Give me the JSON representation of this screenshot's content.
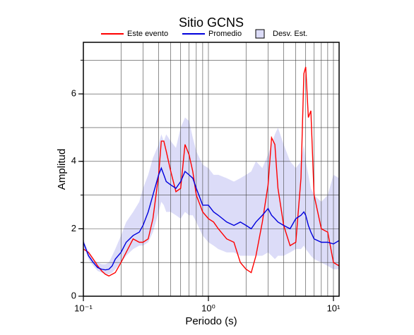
{
  "chart_data": {
    "type": "line",
    "title": "Sitio GCNS",
    "xlabel": "Periodo (s)",
    "ylabel": "Amplitud",
    "log_x": true,
    "grid": true,
    "legend": "top",
    "x": [
      0.1,
      0.11,
      0.12,
      0.13,
      0.14,
      0.15,
      0.16,
      0.17,
      0.18,
      0.2,
      0.22,
      0.25,
      0.28,
      0.3,
      0.33,
      0.36,
      0.4,
      0.42,
      0.44,
      0.46,
      0.5,
      0.55,
      0.6,
      0.65,
      0.7,
      0.75,
      0.8,
      0.9,
      1.0,
      1.1,
      1.2,
      1.4,
      1.6,
      1.8,
      2.0,
      2.2,
      2.4,
      2.7,
      3.0,
      3.2,
      3.4,
      3.6,
      4.0,
      4.5,
      5.0,
      5.5,
      5.8,
      6.0,
      6.3,
      6.6,
      7.0,
      8.0,
      9.0,
      10,
      11.1
    ],
    "series": [
      {
        "name": "Este evento",
        "color": "#ff0000",
        "values": [
          1.4,
          1.3,
          1.1,
          0.9,
          0.75,
          0.65,
          0.6,
          0.65,
          0.7,
          1.0,
          1.3,
          1.7,
          1.6,
          1.6,
          1.7,
          2.3,
          3.6,
          4.6,
          4.6,
          4.3,
          3.7,
          3.1,
          3.2,
          4.5,
          4.2,
          3.7,
          3.0,
          2.5,
          2.3,
          2.2,
          2.0,
          1.7,
          1.6,
          1.0,
          0.8,
          0.7,
          1.2,
          2.2,
          3.3,
          4.7,
          4.5,
          3.2,
          2.1,
          1.5,
          1.6,
          3.5,
          6.6,
          6.8,
          5.3,
          5.5,
          3.0,
          2.0,
          1.9,
          1.0,
          0.9
        ]
      },
      {
        "name": "Promedio",
        "color": "#0000dd",
        "values": [
          1.6,
          1.2,
          1.0,
          0.85,
          0.8,
          0.78,
          0.8,
          0.9,
          1.1,
          1.3,
          1.6,
          1.8,
          1.9,
          2.1,
          2.5,
          3.0,
          3.6,
          3.8,
          3.6,
          3.4,
          3.3,
          3.2,
          3.4,
          3.7,
          3.6,
          3.5,
          3.2,
          2.7,
          2.7,
          2.5,
          2.4,
          2.2,
          2.1,
          2.2,
          2.1,
          2.0,
          2.2,
          2.4,
          2.6,
          2.4,
          2.3,
          2.2,
          2.1,
          2.0,
          2.3,
          2.4,
          2.5,
          2.4,
          2.1,
          1.9,
          1.7,
          1.6,
          1.6,
          1.55,
          1.65
        ]
      }
    ],
    "band": {
      "name": "Desv. Est.",
      "color": "#dcdcf8",
      "lower": [
        1.5,
        1.1,
        0.9,
        0.75,
        0.7,
        0.65,
        0.65,
        0.7,
        0.8,
        1.0,
        1.2,
        1.4,
        1.5,
        1.5,
        1.6,
        1.9,
        2.5,
        2.8,
        2.7,
        2.5,
        2.5,
        2.4,
        2.3,
        2.5,
        2.4,
        2.4,
        2.2,
        1.8,
        1.6,
        1.5,
        1.4,
        1.3,
        1.3,
        1.2,
        1.2,
        1.2,
        1.2,
        1.2,
        1.3,
        1.2,
        1.1,
        1.2,
        1.2,
        1.3,
        1.4,
        1.4,
        1.5,
        1.4,
        1.3,
        1.2,
        1.1,
        1.0,
        0.9,
        0.8,
        0.8
      ],
      "upper": [
        1.7,
        1.3,
        1.1,
        1.0,
        0.95,
        0.95,
        1.0,
        1.2,
        1.4,
        1.8,
        2.2,
        2.5,
        2.8,
        3.2,
        3.6,
        4.1,
        4.5,
        4.8,
        4.6,
        4.8,
        4.6,
        4.4,
        5.0,
        5.3,
        5.2,
        4.7,
        4.3,
        3.9,
        3.8,
        3.6,
        3.6,
        3.5,
        3.4,
        3.5,
        3.6,
        3.7,
        4.0,
        3.8,
        4.2,
        4.5,
        4.8,
        5.0,
        4.5,
        4.0,
        3.8,
        4.0,
        4.5,
        4.0,
        3.6,
        3.2,
        3.0,
        2.8,
        3.0,
        3.6,
        3.5
      ]
    },
    "xlim": [
      0.1,
      11.1
    ],
    "ylim": [
      0,
      7.53
    ],
    "xticks": [
      {
        "value": 0.1,
        "label": "10⁻¹"
      },
      {
        "value": 1,
        "label": "10⁰"
      },
      {
        "value": 10,
        "label": "10¹"
      }
    ],
    "xgrid": [
      0.2,
      0.3,
      0.4,
      0.5,
      0.6,
      0.7,
      0.8,
      0.9,
      1,
      2,
      3,
      4,
      5,
      6,
      7,
      8,
      9,
      10
    ],
    "yticks": [
      0,
      2,
      4,
      6
    ],
    "ygrid": [
      1,
      2,
      3,
      4,
      5,
      6,
      7
    ]
  }
}
